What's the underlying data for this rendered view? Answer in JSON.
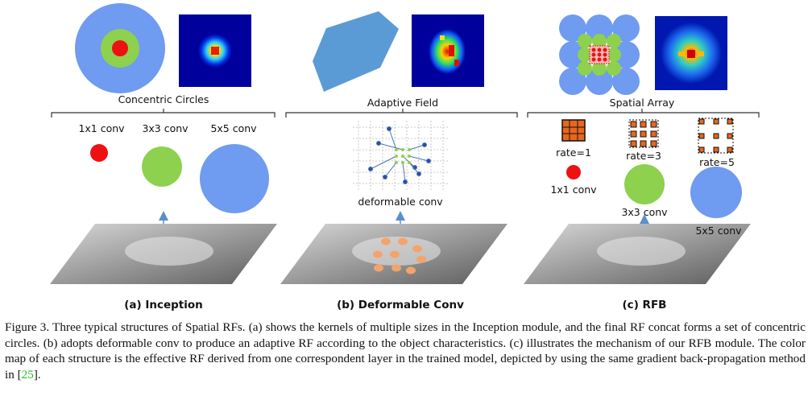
{
  "panels": {
    "a": {
      "header": "Concentric Circles",
      "labels": [
        "1x1 conv",
        "3x3 conv",
        "5x5 conv"
      ],
      "caption": "(a) Inception"
    },
    "b": {
      "header": "Adaptive Field",
      "label": "deformable conv",
      "caption": "(b) Deformable Conv"
    },
    "c": {
      "header": "Spatial Array",
      "rates": [
        "rate=1",
        "rate=3",
        "rate=5"
      ],
      "labels": [
        "1x1 conv",
        "3x3 conv",
        "5x5 conv"
      ],
      "caption": "(c) RFB"
    }
  },
  "caption": {
    "prefix": "Figure 3. Three typical structures of Spatial RFs. (a) shows the kernels of multiple sizes in the Inception module, and the final RF concat forms a set of concentric circles. (b) adopts deformable conv to produce an adaptive RF according to the object characteristics. (c) illustrates the mechanism of our RFB module. The color map of each structure is the effective RF derived from one correspondent layer in the trained model, depicted by using the same gradient back-propagation method in [",
    "ref": "25",
    "suffix": "]."
  },
  "colors": {
    "blue_circle": "#6f9bf0",
    "green_circle": "#8dd14e",
    "red_circle": "#ee1111",
    "heatmap_bg": "#00009c",
    "orange_dot": "#f4a46a",
    "kernel_orange": "#e8671c",
    "arrow": "#5a8fc8"
  }
}
